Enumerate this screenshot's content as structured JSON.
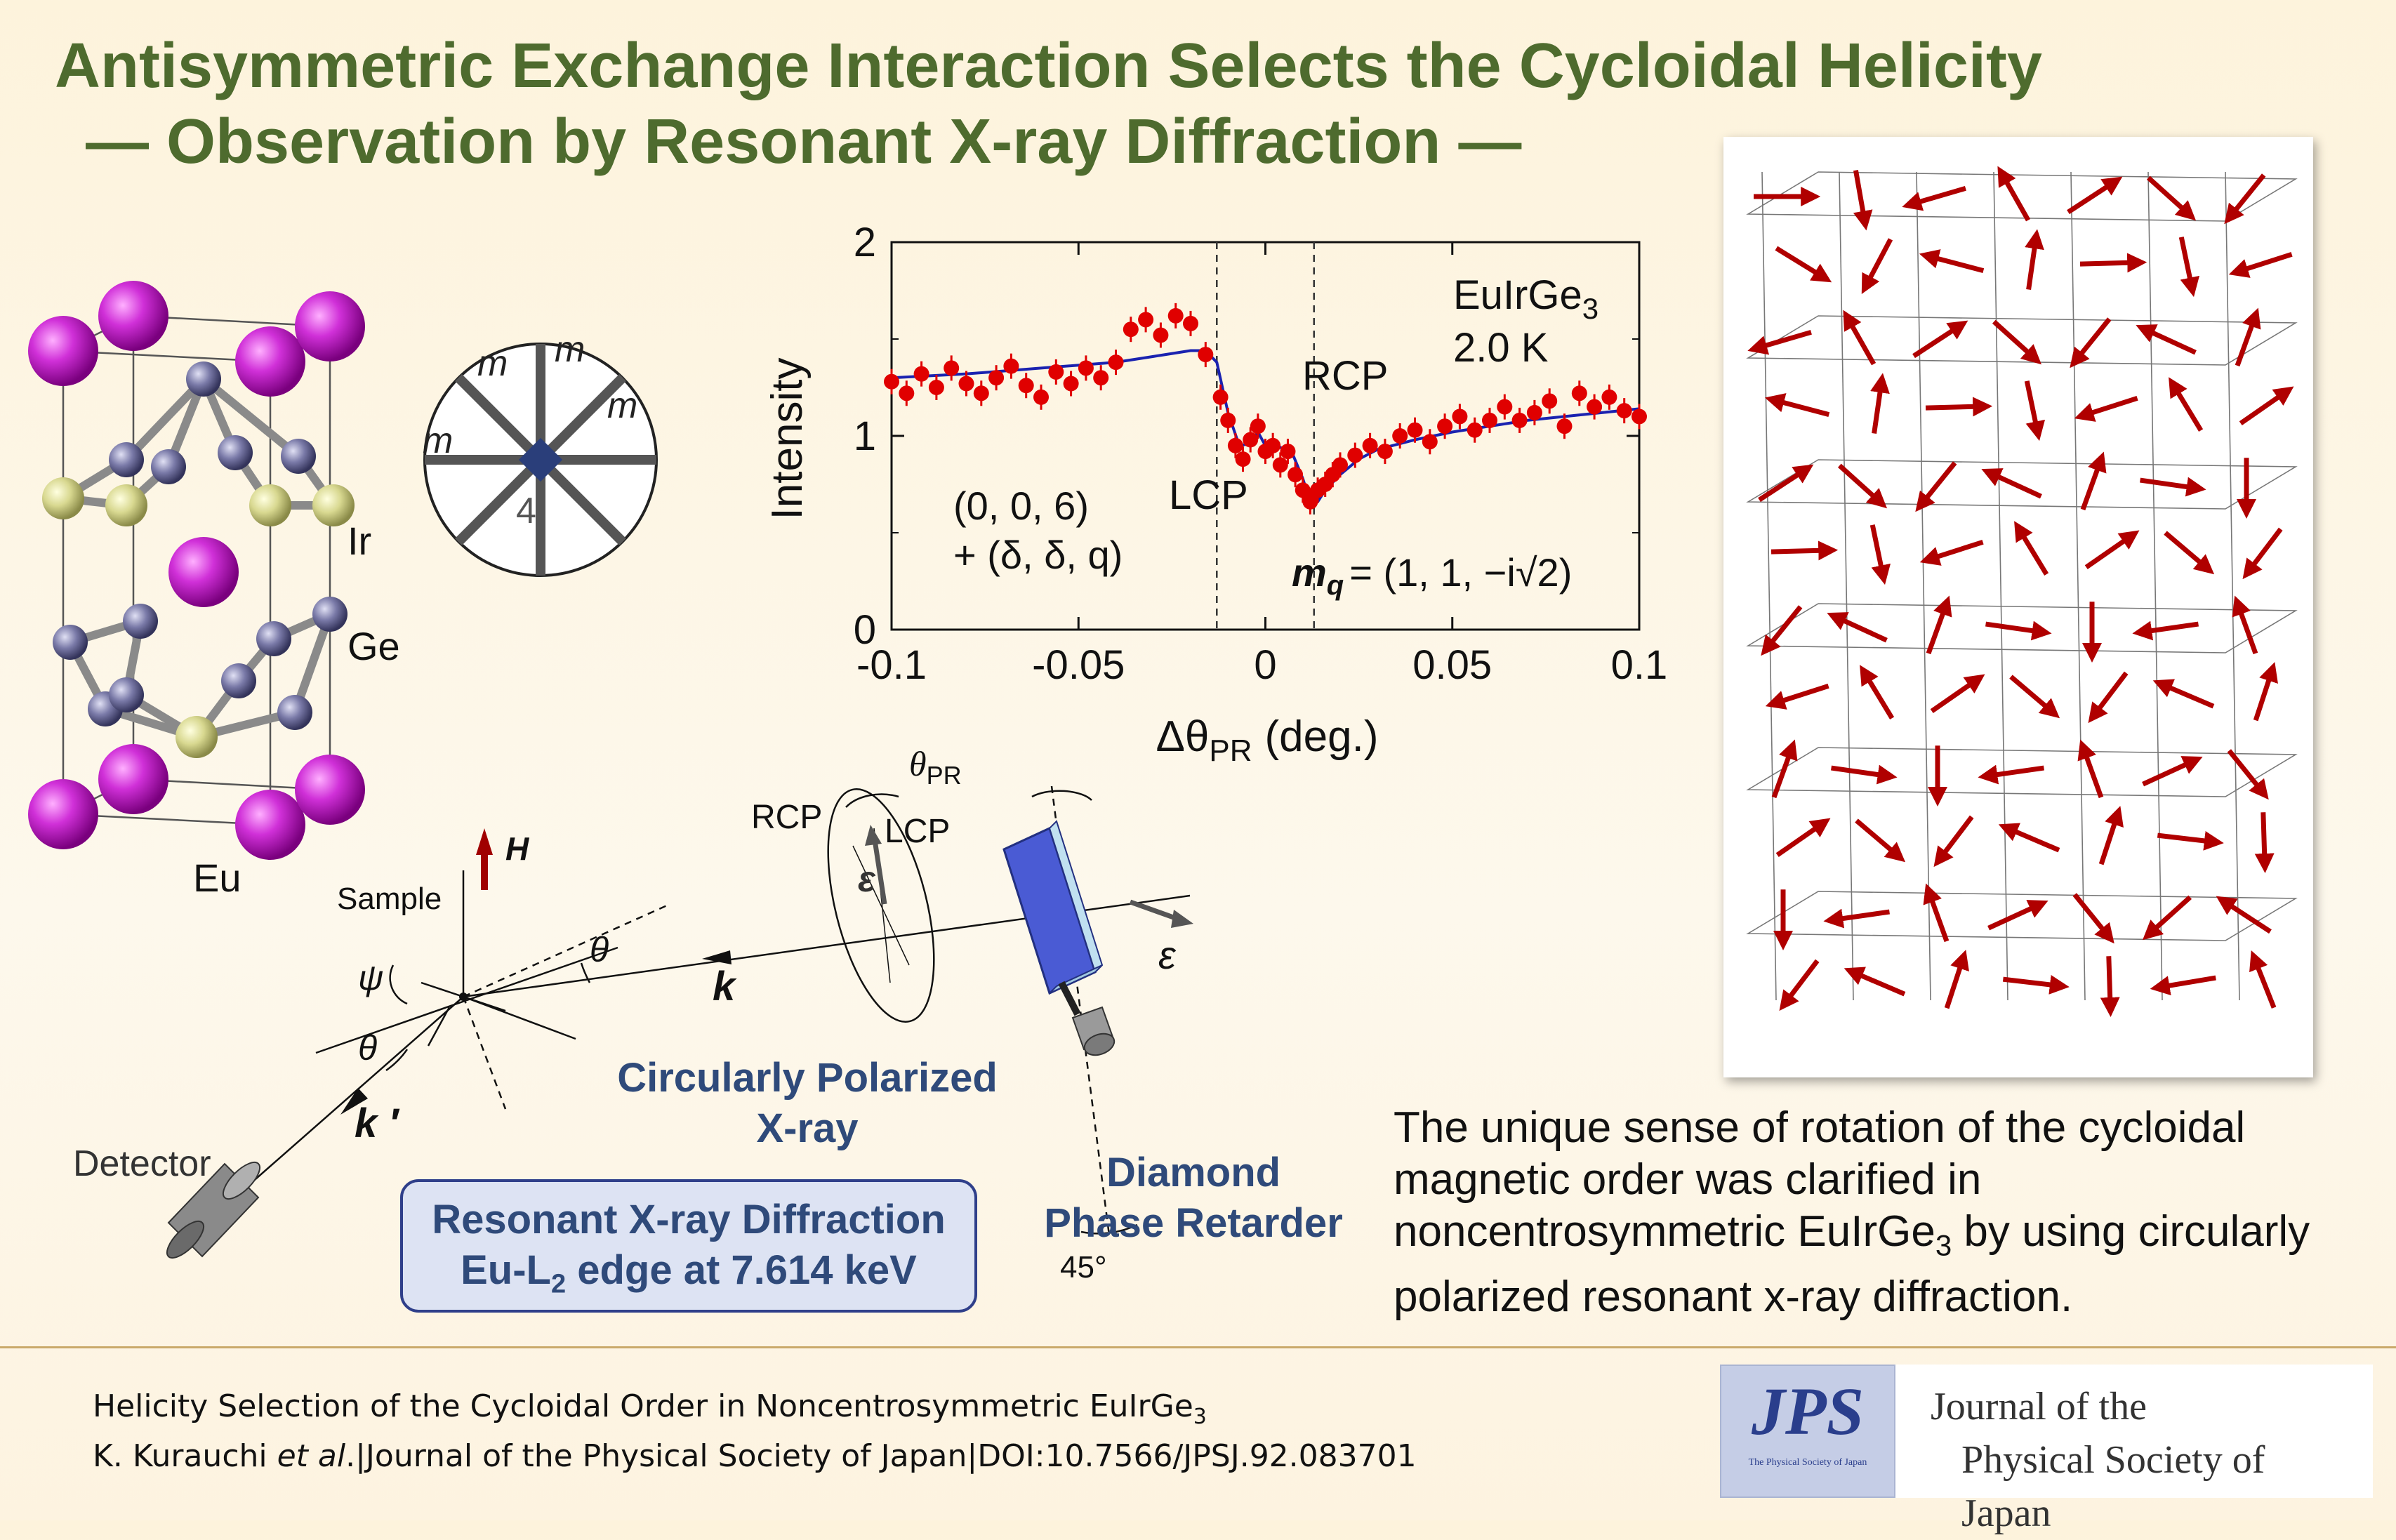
{
  "title": {
    "line1": "Antisymmetric Exchange Interaction Selects the Cycloidal Helicity",
    "line2": "— Observation by Resonant X-ray Diffraction —"
  },
  "crystal": {
    "labels": {
      "ir": "Ir",
      "ge": "Ge",
      "eu": "Eu"
    },
    "colors": {
      "eu": "#c020c8",
      "ir": "#7a7aa8",
      "ge": "#d8d890"
    }
  },
  "symmetry": {
    "mirror_label": "m",
    "axis_label": "4"
  },
  "chart_data": {
    "type": "scatter",
    "xlabel_symbol": "Δθ",
    "xlabel_sub": "PR",
    "xlabel_unit": "(deg.)",
    "ylabel": "Intensity",
    "xlim": [
      -0.1,
      0.1
    ],
    "ylim": [
      0,
      2
    ],
    "xticks": [
      "-0.1",
      "-0.05",
      "0",
      "0.05",
      "0.1"
    ],
    "yticks": [
      "0",
      "1",
      "2"
    ],
    "vlines": [
      -0.013,
      0.013
    ],
    "annotations": {
      "sample": "EuIrGe",
      "sample_sub": "3",
      "temperature": "2.0 K",
      "rcp": "RCP",
      "lcp": "LCP",
      "reflection_line1": "(0, 0, 6)",
      "reflection_line2": "+ (δ, δ, q)",
      "mq": "m",
      "mq_sub": "q",
      "mq_value": "= (1, 1, −i√2)"
    },
    "series": [
      {
        "kind": "points",
        "color": "#e00000",
        "x": [
          -0.1,
          -0.096,
          -0.092,
          -0.088,
          -0.084,
          -0.08,
          -0.076,
          -0.072,
          -0.068,
          -0.064,
          -0.06,
          -0.056,
          -0.052,
          -0.048,
          -0.044,
          -0.04,
          -0.036,
          -0.032,
          -0.028,
          -0.024,
          -0.02,
          -0.016,
          -0.012,
          -0.01,
          -0.008,
          -0.006,
          -0.004,
          -0.002,
          0.0,
          0.002,
          0.004,
          0.006,
          0.008,
          0.01,
          0.012,
          0.014,
          0.016,
          0.018,
          0.02,
          0.024,
          0.028,
          0.032,
          0.036,
          0.04,
          0.044,
          0.048,
          0.052,
          0.056,
          0.06,
          0.064,
          0.068,
          0.072,
          0.076,
          0.08,
          0.084,
          0.088,
          0.092,
          0.096,
          0.1
        ],
        "y": [
          1.28,
          1.22,
          1.32,
          1.25,
          1.35,
          1.27,
          1.22,
          1.3,
          1.36,
          1.26,
          1.2,
          1.33,
          1.27,
          1.35,
          1.3,
          1.38,
          1.55,
          1.6,
          1.52,
          1.62,
          1.58,
          1.42,
          1.2,
          1.08,
          0.95,
          0.88,
          0.98,
          1.05,
          0.92,
          0.95,
          0.85,
          0.92,
          0.8,
          0.72,
          0.66,
          0.72,
          0.75,
          0.8,
          0.85,
          0.9,
          0.95,
          0.92,
          1.0,
          1.03,
          0.97,
          1.05,
          1.1,
          1.03,
          1.08,
          1.15,
          1.08,
          1.12,
          1.18,
          1.05,
          1.22,
          1.15,
          1.2,
          1.13,
          1.1
        ]
      },
      {
        "kind": "fit",
        "color": "#1a22b0",
        "x": [
          -0.1,
          -0.08,
          -0.06,
          -0.04,
          -0.03,
          -0.02,
          -0.016,
          -0.013,
          -0.01,
          -0.007,
          -0.004,
          -0.002,
          0.0,
          0.002,
          0.004,
          0.007,
          0.01,
          0.012,
          0.014,
          0.016,
          0.02,
          0.025,
          0.03,
          0.04,
          0.05,
          0.06,
          0.07,
          0.08,
          0.09,
          0.1
        ],
        "y": [
          1.3,
          1.32,
          1.35,
          1.38,
          1.41,
          1.44,
          1.44,
          1.38,
          1.12,
          0.95,
          0.96,
          1.02,
          0.95,
          0.97,
          0.94,
          0.92,
          0.78,
          0.66,
          0.66,
          0.72,
          0.8,
          0.88,
          0.93,
          0.98,
          1.02,
          1.05,
          1.08,
          1.1,
          1.12,
          1.14
        ]
      }
    ]
  },
  "setup": {
    "h_label": "H",
    "sample": "Sample",
    "psi": "ψ",
    "theta": "θ",
    "k": "k",
    "k_prime": "k ′",
    "detector": "Detector",
    "rcp": "RCP",
    "lcp": "LCP",
    "epsilon": "ε",
    "theta_pr": "θ",
    "theta_pr_sub": "PR",
    "angle_45": "45°",
    "cpx_line1": "Circularly Polarized",
    "cpx_line2": "X-ray",
    "dpr_line1": "Diamond",
    "dpr_line2": "Phase Retarder",
    "rxd_line1": "Resonant X-ray Diffraction",
    "rxd_line2_a": "Eu-L",
    "rxd_line2_sub": "2",
    "rxd_line2_b": " edge at 7.614 keV"
  },
  "summary": {
    "part1": "The unique sense of rotation of the cycloidal magnetic order was clarified in noncentrosymmetric EuIrGe",
    "sub": "3",
    "part2": " by using circularly polarized resonant x-ray diffraction."
  },
  "citation": {
    "line1_a": "Helicity Selection of the Cycloidal Order in Noncentrosymmetric EuIrGe",
    "line1_sub": "3",
    "authors": "K. Kurauchi ",
    "et_al": "et al",
    "line2_rest": ".|Journal of the Physical Society of Japan|DOI:10.7566/JPSJ.92.083701"
  },
  "journal": {
    "logo_text": "JPS",
    "logo_small": "The Physical Society of Japan",
    "name_line1": "Journal of the",
    "name_line2": "Physical Society of Japan"
  }
}
